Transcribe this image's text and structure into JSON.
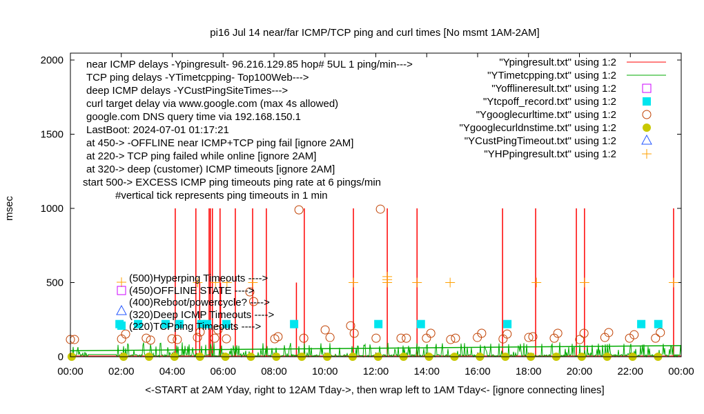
{
  "chart_data": {
    "type": "scatter",
    "title": "pi16 Jul 14  near/far ICMP/TCP ping and curl times [No msmt 1AM-2AM]",
    "xlabel": "<-START at 2AM Yday, right to 12AM Tday->, then wrap left to 1AM Tday<- [ignore connecting lines]",
    "ylabel": "msec",
    "xlim_hours": [
      0,
      24
    ],
    "ylim": [
      0,
      2000
    ],
    "x_ticks": [
      "00:00",
      "02:00",
      "04:00",
      "06:00",
      "08:00",
      "10:00",
      "12:00",
      "14:00",
      "16:00",
      "18:00",
      "20:00",
      "22:00",
      "00:00"
    ],
    "y_ticks": [
      0,
      500,
      1000,
      1500,
      2000
    ],
    "legend_position": "top-right",
    "annotations": [
      "near ICMP delays -Ypingresult- 96.216.129.85 hop# 5UL 1 ping/min--->",
      "TCP ping delays -YTimetcpping- Top100Web--->",
      "deep ICMP delays -YCustPingSiteTimes--->",
      "curl target delay via www.google.com (max 4s allowed)",
      "google.com DNS query time via 192.168.150.1",
      "LastBoot: 2024-07-01 01:17:21",
      "at 450-> -OFFLINE near ICMP+TCP ping fail [ignore 2AM]",
      "at 220-> TCP ping failed while online [ignore 2AM]",
      "at 320-> deep (customer) ICMP timeouts [ignore 2AM]",
      "start 500-> EXCESS ICMP ping timeouts ping rate at 6 pings/min",
      "#vertical tick represents ping timeouts in 1 min"
    ],
    "marker_labels": [
      "(500)Hyperping Timeouts ---->",
      "(450)OFFLINE STATE ---->",
      "(400)Reboot/powercycle? ---->",
      "(320)Deep ICMP Timeouts ---->",
      "(220)TCPping Timeouts ---->"
    ],
    "series": [
      {
        "name": "\"Ypingresult.txt\" using 1:2",
        "style": "line",
        "color": "#ff0000",
        "baseline": 5,
        "spikes": [
          [
            4.12,
            1000
          ],
          [
            4.93,
            1000
          ],
          [
            5.08,
            500
          ],
          [
            5.45,
            1000
          ],
          [
            5.5,
            1000
          ],
          [
            5.58,
            1000
          ],
          [
            5.88,
            1000
          ],
          [
            6.48,
            1000
          ],
          [
            7.16,
            1000
          ],
          [
            7.7,
            1000
          ],
          [
            9.19,
            1000
          ],
          [
            11.12,
            1000
          ],
          [
            12.45,
            1000
          ],
          [
            13.62,
            1000
          ],
          [
            16.98,
            1000
          ],
          [
            18.28,
            1000
          ],
          [
            19.88,
            1000
          ],
          [
            20.2,
            1000
          ],
          [
            23.7,
            1000
          ],
          [
            5.9,
            500
          ],
          [
            8.88,
            500
          ]
        ]
      },
      {
        "name": "\"YTimetcpping.txt\" using 1:2",
        "style": "line",
        "color": "#00aa00",
        "noise_max": 85,
        "noise_base": 15
      },
      {
        "name": "\"Yofflineresult.txt\" using 1:2",
        "style": "open-square",
        "color": "#cc00ff",
        "points": []
      },
      {
        "name": "\"Ytcpoff_record.txt\" using 1:2",
        "style": "filled-square",
        "color": "#00e5ee",
        "points": [
          [
            1.93,
            220
          ],
          [
            2.66,
            220
          ],
          [
            3.74,
            220
          ],
          [
            4.28,
            220
          ],
          [
            5.15,
            220
          ],
          [
            5.37,
            220
          ],
          [
            6.13,
            220
          ],
          [
            8.79,
            220
          ],
          [
            12.1,
            220
          ],
          [
            13.77,
            220
          ],
          [
            17.17,
            220
          ],
          [
            22.43,
            220
          ],
          [
            23.1,
            220
          ]
        ]
      },
      {
        "name": "\"Ygooglecurltime.txt\" using 1:2",
        "style": "open-circle",
        "color": "#c04000",
        "points": [
          [
            0.0,
            116
          ],
          [
            0.16,
            116
          ],
          [
            2.01,
            120
          ],
          [
            2.17,
            153
          ],
          [
            2.98,
            125
          ],
          [
            3.15,
            112
          ],
          [
            3.99,
            121
          ],
          [
            4.2,
            116
          ],
          [
            4.99,
            130
          ],
          [
            5.1,
            167
          ],
          [
            5.67,
            125
          ],
          [
            5.8,
            181
          ],
          [
            6.13,
            121
          ],
          [
            7.2,
            372
          ],
          [
            7.05,
            437
          ],
          [
            8.03,
            121
          ],
          [
            8.16,
            135
          ],
          [
            8.98,
            990
          ],
          [
            9.17,
            125
          ],
          [
            10.01,
            181
          ],
          [
            10.2,
            130
          ],
          [
            11.01,
            209
          ],
          [
            11.15,
            158
          ],
          [
            12.01,
            125
          ],
          [
            12.18,
            995
          ],
          [
            12.99,
            125
          ],
          [
            13.2,
            125
          ],
          [
            13.99,
            125
          ],
          [
            14.16,
            158
          ],
          [
            14.94,
            116
          ],
          [
            15.13,
            125
          ],
          [
            15.99,
            130
          ],
          [
            16.16,
            158
          ],
          [
            17.0,
            120
          ],
          [
            17.16,
            153
          ],
          [
            18.01,
            130
          ],
          [
            18.17,
            135
          ],
          [
            19.01,
            125
          ],
          [
            19.15,
            158
          ],
          [
            20.01,
            116
          ],
          [
            20.18,
            158
          ],
          [
            21.0,
            130
          ],
          [
            21.15,
            163
          ],
          [
            21.97,
            125
          ],
          [
            22.15,
            148
          ],
          [
            22.99,
            125
          ],
          [
            23.18,
            163
          ]
        ]
      },
      {
        "name": "\"Ygooglecurldnstime.txt\" using 1:2",
        "style": "filled-circle",
        "color": "#c8c800",
        "points": [
          [
            0.05,
            0
          ],
          [
            2.09,
            0
          ],
          [
            3.09,
            0
          ],
          [
            4.09,
            0
          ],
          [
            5.09,
            0
          ],
          [
            6.09,
            0
          ],
          [
            7.09,
            0
          ],
          [
            8.09,
            0
          ],
          [
            9.09,
            0
          ],
          [
            10.09,
            0
          ],
          [
            11.09,
            0
          ],
          [
            12.09,
            0
          ],
          [
            13.09,
            0
          ],
          [
            14.09,
            0
          ],
          [
            15.09,
            0
          ],
          [
            16.09,
            0
          ],
          [
            17.09,
            0
          ],
          [
            18.09,
            0
          ],
          [
            19.09,
            0
          ],
          [
            20.09,
            0
          ],
          [
            21.09,
            0
          ],
          [
            22.09,
            0
          ],
          [
            23.09,
            0
          ]
        ]
      },
      {
        "name": "\"YCustPingTimeout.txt\" using 1:2",
        "style": "open-triangle",
        "color": "#2255ff",
        "points": []
      },
      {
        "name": "\"YHPpingresult.txt\" using 1:2",
        "style": "plus",
        "color": "#ffa000",
        "points": [
          [
            5.0,
            500
          ],
          [
            5.7,
            500
          ],
          [
            6.15,
            500
          ],
          [
            7.17,
            500
          ],
          [
            11.12,
            500
          ],
          [
            12.45,
            500
          ],
          [
            12.45,
            520
          ],
          [
            12.45,
            540
          ],
          [
            13.62,
            500
          ],
          [
            14.92,
            500
          ],
          [
            18.31,
            500
          ],
          [
            20.2,
            500
          ],
          [
            23.7,
            500
          ]
        ]
      }
    ]
  }
}
